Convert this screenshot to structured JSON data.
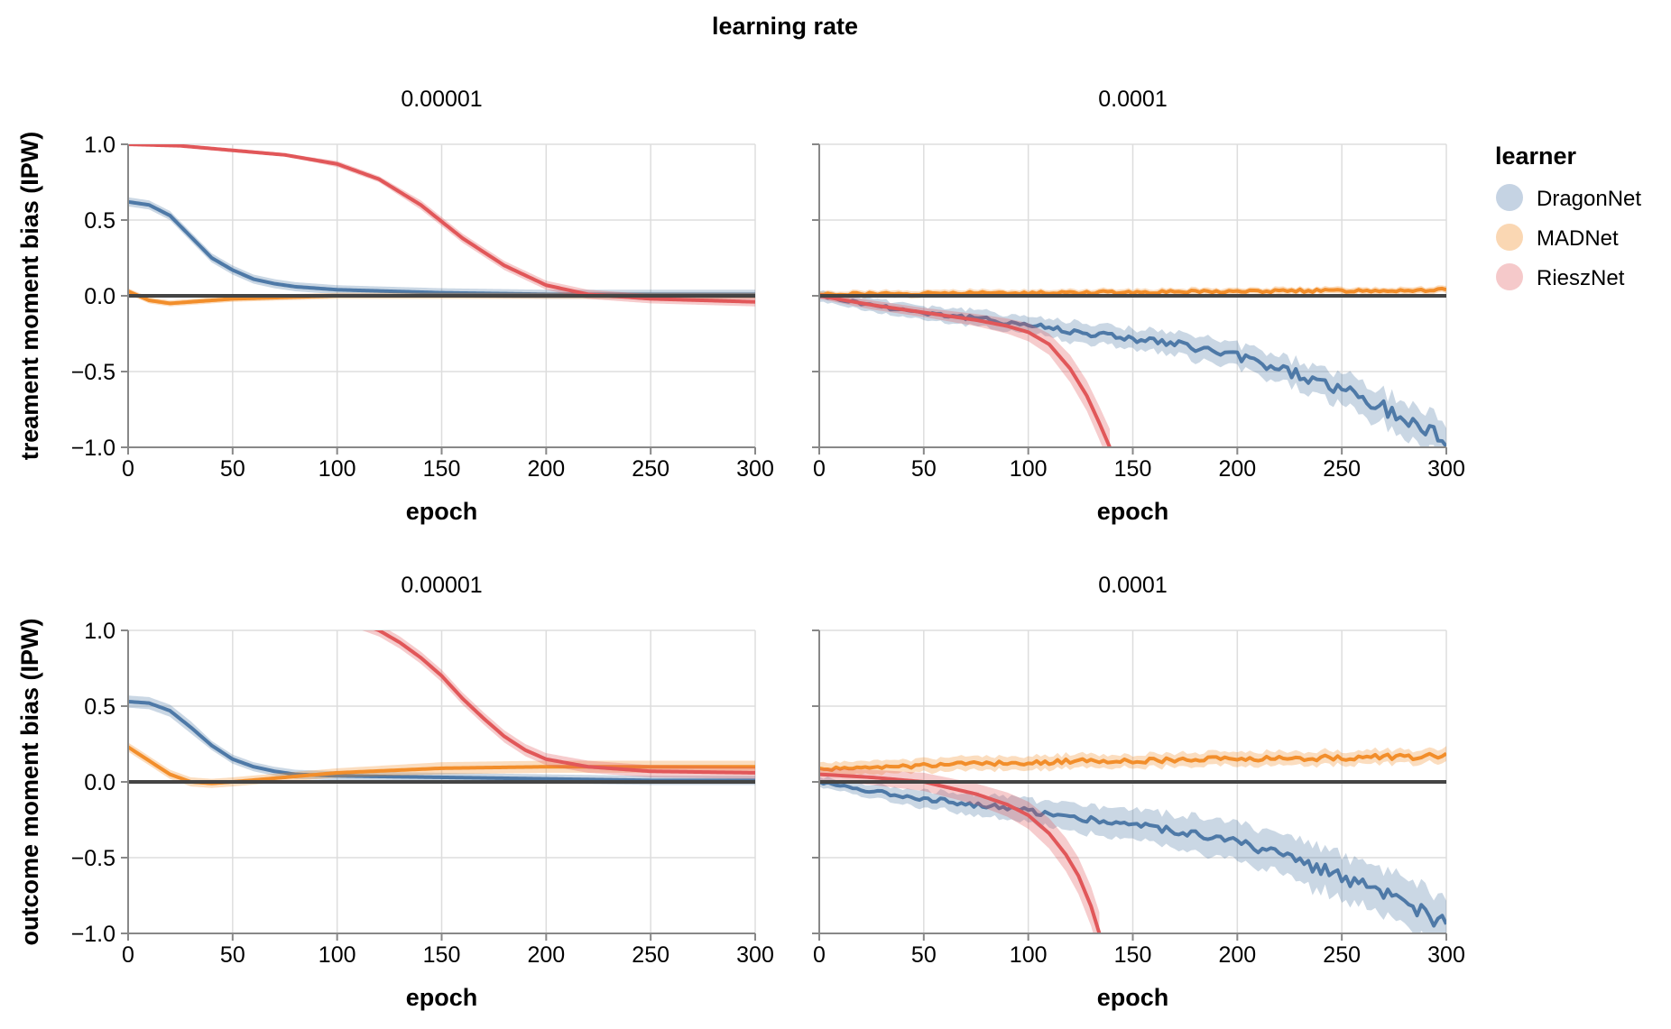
{
  "figure": {
    "super_title": "learning rate",
    "legend": {
      "title": "learner",
      "placement": "right",
      "entries": [
        {
          "name": "DragonNet",
          "color": "#4e79a7",
          "swatch": "#c5d3e3"
        },
        {
          "name": "MADNet",
          "color": "#f28e2b",
          "swatch": "#fad7b3"
        },
        {
          "name": "RieszNet",
          "color": "#e15759",
          "swatch": "#f5c9ca"
        }
      ]
    }
  },
  "chart_data": [
    {
      "type": "line",
      "column_title": "0.00001",
      "xlabel": "epoch",
      "ylabel": "treament moment bias (IPW)",
      "xlim": [
        0,
        300
      ],
      "ylim": [
        -1.0,
        1.0
      ],
      "x_ticks": [
        "0",
        "50",
        "100",
        "150",
        "200",
        "250",
        "300"
      ],
      "y_ticks": [
        "1.0",
        "0.5",
        "0.0",
        "−0.5",
        "−1.0"
      ],
      "grid": true,
      "reference_line": 0,
      "series": [
        {
          "name": "DragonNet",
          "x": [
            0,
            10,
            20,
            30,
            40,
            50,
            60,
            70,
            80,
            100,
            150,
            200,
            250,
            300
          ],
          "y": [
            0.62,
            0.6,
            0.53,
            0.39,
            0.25,
            0.17,
            0.11,
            0.08,
            0.06,
            0.04,
            0.02,
            0.01,
            0.01,
            0.01
          ],
          "band": [
            0.03,
            0.03,
            0.03,
            0.03,
            0.03,
            0.03,
            0.03,
            0.03,
            0.03,
            0.03,
            0.03,
            0.03,
            0.03,
            0.03
          ]
        },
        {
          "name": "MADNet",
          "x": [
            0,
            10,
            20,
            30,
            40,
            50,
            75,
            100,
            150,
            200,
            250,
            300
          ],
          "y": [
            0.03,
            -0.03,
            -0.05,
            -0.04,
            -0.03,
            -0.02,
            -0.01,
            0.0,
            0.0,
            0.0,
            0.0,
            0.0
          ],
          "band": [
            0.02,
            0.02,
            0.02,
            0.02,
            0.02,
            0.02,
            0.02,
            0.02,
            0.02,
            0.02,
            0.02,
            0.02
          ]
        },
        {
          "name": "RieszNet",
          "x": [
            0,
            25,
            50,
            75,
            100,
            120,
            140,
            150,
            160,
            180,
            200,
            220,
            250,
            300
          ],
          "y": [
            1.0,
            0.99,
            0.96,
            0.93,
            0.87,
            0.77,
            0.6,
            0.49,
            0.38,
            0.2,
            0.07,
            0.01,
            -0.02,
            -0.04
          ],
          "band": [
            0.01,
            0.01,
            0.01,
            0.01,
            0.02,
            0.02,
            0.03,
            0.03,
            0.03,
            0.03,
            0.03,
            0.03,
            0.03,
            0.03
          ]
        }
      ]
    },
    {
      "type": "line",
      "column_title": "0.0001",
      "xlabel": "epoch",
      "ylabel": "",
      "xlim": [
        0,
        300
      ],
      "ylim": [
        -1.0,
        1.0
      ],
      "x_ticks": [
        "0",
        "50",
        "100",
        "150",
        "200",
        "250",
        "300"
      ],
      "y_ticks": [],
      "grid": true,
      "reference_line": 0,
      "series": [
        {
          "name": "DragonNet",
          "x": [
            0,
            25,
            50,
            75,
            100,
            125,
            150,
            175,
            200,
            225,
            250,
            275,
            300
          ],
          "y": [
            0.0,
            -0.06,
            -0.11,
            -0.15,
            -0.19,
            -0.24,
            -0.28,
            -0.33,
            -0.4,
            -0.5,
            -0.62,
            -0.78,
            -0.95
          ],
          "band": [
            0.03,
            0.04,
            0.04,
            0.05,
            0.05,
            0.06,
            0.06,
            0.07,
            0.07,
            0.08,
            0.09,
            0.1,
            0.12
          ],
          "noisy": true
        },
        {
          "name": "MADNet",
          "x": [
            0,
            50,
            100,
            150,
            200,
            250,
            300
          ],
          "y": [
            0.01,
            0.015,
            0.02,
            0.025,
            0.03,
            0.035,
            0.04
          ],
          "band": [
            0.02,
            0.02,
            0.02,
            0.02,
            0.02,
            0.02,
            0.02
          ],
          "noisy": true
        },
        {
          "name": "RieszNet",
          "x": [
            0,
            25,
            50,
            75,
            90,
            100,
            110,
            120,
            128,
            134,
            139
          ],
          "y": [
            0.0,
            -0.06,
            -0.11,
            -0.16,
            -0.2,
            -0.24,
            -0.32,
            -0.48,
            -0.66,
            -0.84,
            -1.0
          ],
          "band": [
            0.02,
            0.03,
            0.03,
            0.04,
            0.05,
            0.06,
            0.07,
            0.09,
            0.1,
            0.11,
            0.12
          ]
        }
      ]
    },
    {
      "type": "line",
      "column_title": "0.00001",
      "xlabel": "epoch",
      "ylabel": "outcome moment bias (IPW)",
      "xlim": [
        0,
        300
      ],
      "ylim": [
        -1.0,
        1.0
      ],
      "x_ticks": [
        "0",
        "50",
        "100",
        "150",
        "200",
        "250",
        "300"
      ],
      "y_ticks": [
        "1.0",
        "0.5",
        "0.0",
        "−0.5",
        "−1.0"
      ],
      "grid": true,
      "reference_line": 0,
      "series": [
        {
          "name": "DragonNet",
          "x": [
            0,
            10,
            20,
            30,
            40,
            50,
            60,
            70,
            80,
            100,
            150,
            200,
            250,
            300
          ],
          "y": [
            0.53,
            0.52,
            0.47,
            0.36,
            0.24,
            0.15,
            0.1,
            0.07,
            0.05,
            0.04,
            0.03,
            0.02,
            0.01,
            0.01
          ],
          "band": [
            0.04,
            0.04,
            0.04,
            0.04,
            0.03,
            0.03,
            0.03,
            0.03,
            0.03,
            0.03,
            0.03,
            0.03,
            0.03,
            0.03
          ]
        },
        {
          "name": "MADNet",
          "x": [
            0,
            10,
            20,
            30,
            40,
            50,
            75,
            100,
            150,
            200,
            250,
            300
          ],
          "y": [
            0.23,
            0.14,
            0.05,
            0.0,
            -0.01,
            0.0,
            0.03,
            0.06,
            0.09,
            0.1,
            0.1,
            0.1
          ],
          "band": [
            0.03,
            0.03,
            0.03,
            0.03,
            0.03,
            0.03,
            0.03,
            0.03,
            0.04,
            0.04,
            0.04,
            0.04
          ]
        },
        {
          "name": "RieszNet",
          "x": [
            110,
            120,
            130,
            140,
            150,
            160,
            170,
            180,
            190,
            200,
            220,
            250,
            300
          ],
          "y": [
            1.05,
            1.0,
            0.92,
            0.82,
            0.7,
            0.55,
            0.42,
            0.3,
            0.21,
            0.15,
            0.1,
            0.07,
            0.06
          ],
          "band": [
            0.04,
            0.04,
            0.04,
            0.04,
            0.04,
            0.04,
            0.04,
            0.04,
            0.04,
            0.04,
            0.04,
            0.04,
            0.04
          ]
        }
      ]
    },
    {
      "type": "line",
      "column_title": "0.0001",
      "xlabel": "epoch",
      "ylabel": "",
      "xlim": [
        0,
        300
      ],
      "ylim": [
        -1.0,
        1.0
      ],
      "x_ticks": [
        "0",
        "50",
        "100",
        "150",
        "200",
        "250",
        "300"
      ],
      "y_ticks": [],
      "grid": true,
      "reference_line": 0,
      "series": [
        {
          "name": "DragonNet",
          "x": [
            0,
            25,
            50,
            75,
            100,
            125,
            150,
            175,
            200,
            225,
            250,
            275,
            300
          ],
          "y": [
            0.0,
            -0.06,
            -0.11,
            -0.15,
            -0.19,
            -0.24,
            -0.28,
            -0.33,
            -0.4,
            -0.5,
            -0.62,
            -0.78,
            -0.95
          ],
          "band": [
            0.03,
            0.04,
            0.05,
            0.06,
            0.07,
            0.08,
            0.09,
            0.1,
            0.11,
            0.12,
            0.13,
            0.14,
            0.15
          ],
          "noisy": true
        },
        {
          "name": "MADNet",
          "x": [
            0,
            50,
            100,
            150,
            200,
            250,
            300
          ],
          "y": [
            0.08,
            0.11,
            0.13,
            0.14,
            0.15,
            0.16,
            0.17
          ],
          "band": [
            0.04,
            0.04,
            0.04,
            0.04,
            0.04,
            0.04,
            0.04
          ],
          "noisy": true
        },
        {
          "name": "RieszNet",
          "x": [
            0,
            25,
            50,
            75,
            90,
            100,
            110,
            118,
            124,
            130,
            134
          ],
          "y": [
            0.05,
            0.03,
            0.0,
            -0.08,
            -0.15,
            -0.22,
            -0.34,
            -0.48,
            -0.62,
            -0.82,
            -1.0
          ],
          "band": [
            0.04,
            0.05,
            0.06,
            0.07,
            0.08,
            0.09,
            0.1,
            0.11,
            0.12,
            0.13,
            0.14
          ]
        }
      ]
    }
  ]
}
